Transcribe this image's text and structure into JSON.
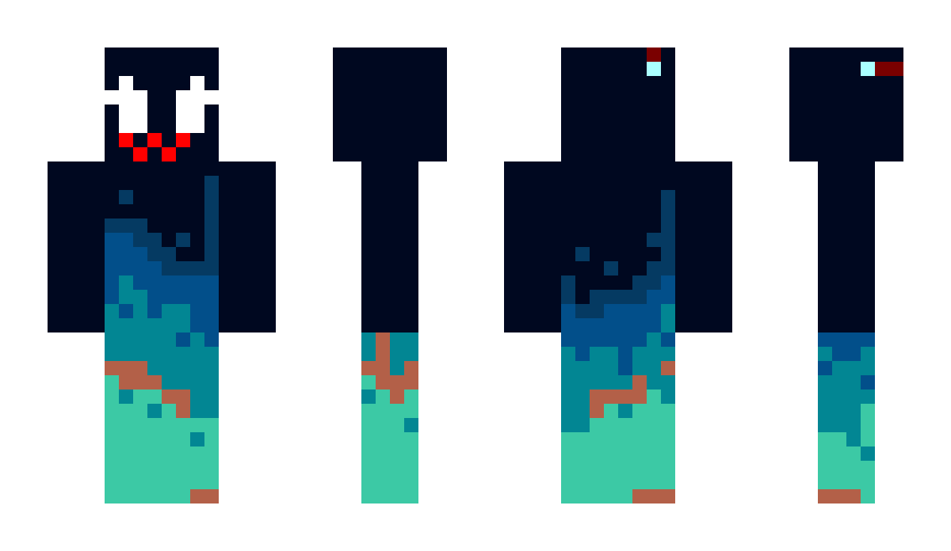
{
  "scene": "minecraft-skin-preview",
  "views": [
    {
      "name": "front"
    },
    {
      "name": "side-left"
    },
    {
      "name": "back"
    },
    {
      "name": "side-right"
    }
  ],
  "palette": {
    "K": "#000820",
    "D": "#053a62",
    "B": "#024f8a",
    "T": "#028693",
    "M": "#3cc9a5",
    "R": "#b36048",
    "W": "#ffffff",
    "r": "#ff0000",
    "C": "#aaffff",
    "X": "#7a0000"
  }
}
